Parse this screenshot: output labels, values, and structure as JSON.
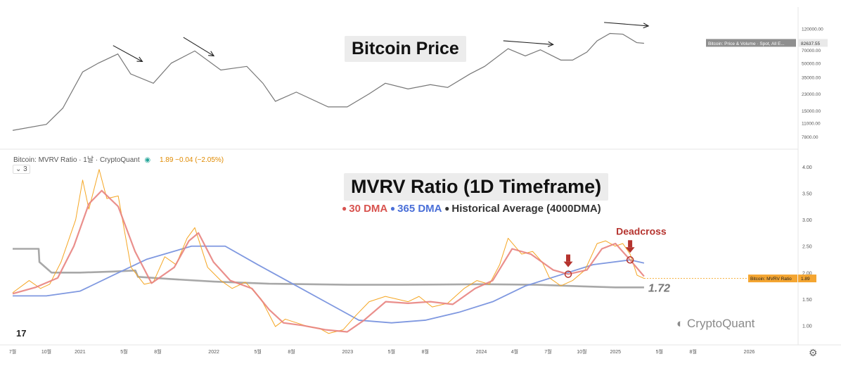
{
  "price_title": "Bitcoin Price",
  "mvrv_title": "MVRV Ratio (1D Timeframe)",
  "legend": [
    {
      "label": "30 DMA",
      "color": "#e0736f"
    },
    {
      "label": "365 DMA",
      "color": "#5b7fe0"
    },
    {
      "label": "Historical Average (4000DMA)",
      "color": "#444444"
    }
  ],
  "indicator": {
    "name": "Bitcoin: MVRV Ratio · 1날 · CryptoQuant",
    "value": "1.89  −0.04 (−2.05%)"
  },
  "collapse_label": "3",
  "deadcross_label": "Deadcross",
  "avg_value_label": "1.72",
  "price_tag": "Bitcoin: Price & Volume · Spot, All E...",
  "price_tag_value": "82637.55",
  "mvrv_tag": "Bitcoin: MVRV Ratio",
  "mvrv_tag_value": "1.89",
  "tv_logo": "17",
  "cq_logo": "CryptoQuant",
  "colors": {
    "mvrv": "#f5a623",
    "dma30": "#e8837f",
    "dma365": "#7f98e0",
    "hist": "#a8a8a8",
    "price": "#777777",
    "deadcross": "#b5332e",
    "tag": "#f4a531"
  },
  "chart_data": [
    {
      "type": "line",
      "title": "Bitcoin Price",
      "scale": "log",
      "x_range": [
        "2020-07-01",
        "2026-05-01"
      ],
      "y_ticks": [
        "120000.00",
        "70000.00",
        "50000.00",
        "35000.00",
        "23000.00",
        "15000.00",
        "11000.00",
        "7800.00"
      ],
      "last_value": 82637.55,
      "series": [
        {
          "name": "Bitcoin: Price & Volume · Spot, All E...",
          "x": [
            "2020-07-01",
            "2020-10-01",
            "2020-11-15",
            "2021-01-08",
            "2021-02-20",
            "2021-04-14",
            "2021-05-19",
            "2021-07-20",
            "2021-09-07",
            "2021-11-10",
            "2022-01-20",
            "2022-04-01",
            "2022-05-15",
            "2022-06-18",
            "2022-08-14",
            "2022-11-09",
            "2022-12-31",
            "2023-03-01",
            "2023-04-14",
            "2023-06-15",
            "2023-08-15",
            "2023-10-01",
            "2023-12-01",
            "2024-01-10",
            "2024-03-14",
            "2024-04-30",
            "2024-06-10",
            "2024-08-05",
            "2024-09-06",
            "2024-10-15",
            "2024-11-12",
            "2024-12-17",
            "2025-01-21",
            "2025-02-28",
            "2025-03-20"
          ],
          "values": [
            9100,
            10600,
            16000,
            40000,
            50000,
            63000,
            38000,
            30000,
            50000,
            68000,
            42000,
            46000,
            30000,
            19000,
            24000,
            16500,
            16500,
            23000,
            30000,
            26000,
            29000,
            27000,
            38000,
            46000,
            72000,
            60000,
            70000,
            54000,
            54000,
            66000,
            88000,
            106000,
            104000,
            84000,
            82600
          ]
        }
      ]
    },
    {
      "type": "line",
      "title": "MVRV Ratio (1D Timeframe)",
      "x_range": [
        "2020-07-01",
        "2026-05-01"
      ],
      "x_ticks": [
        "7월",
        "10월",
        "2021",
        "5월",
        "8월",
        "2022",
        "5월",
        "8월",
        "2023",
        "5월",
        "8월",
        "2024",
        "4월",
        "7월",
        "10월",
        "2025",
        "5월",
        "8월",
        "2026"
      ],
      "ylim": [
        0.7,
        4.2
      ],
      "y_ticks": [
        "4.00",
        "3.50",
        "3.00",
        "2.50",
        "2.00",
        "1.50",
        "1.00"
      ],
      "last_value": 1.89,
      "annotations": [
        {
          "text": "Deadcross",
          "x": "2025-02-10",
          "y": 2.24
        },
        {
          "text": "",
          "x": "2024-08-25",
          "y": 1.97
        },
        {
          "text": "1.72",
          "x": "2025-03-20",
          "y": 1.72
        }
      ],
      "series": [
        {
          "name": "Bitcoin: MVRV Ratio",
          "x": [
            "2020-07-01",
            "2020-08-15",
            "2020-09-15",
            "2020-10-10",
            "2020-11-10",
            "2020-12-20",
            "2021-01-08",
            "2021-01-25",
            "2021-02-22",
            "2021-03-15",
            "2021-04-15",
            "2021-05-20",
            "2021-06-25",
            "2021-07-20",
            "2021-08-20",
            "2021-09-20",
            "2021-10-20",
            "2021-11-10",
            "2021-12-15",
            "2022-01-20",
            "2022-02-20",
            "2022-03-28",
            "2022-05-10",
            "2022-06-18",
            "2022-07-15",
            "2022-08-15",
            "2022-09-15",
            "2022-10-15",
            "2022-11-10",
            "2022-12-20",
            "2023-01-25",
            "2023-03-01",
            "2023-04-14",
            "2023-06-15",
            "2023-07-15",
            "2023-08-20",
            "2023-10-01",
            "2023-11-15",
            "2023-12-20",
            "2024-01-23",
            "2024-02-20",
            "2024-03-14",
            "2024-04-20",
            "2024-05-20",
            "2024-06-15",
            "2024-07-05",
            "2024-08-05",
            "2024-09-06",
            "2024-10-10",
            "2024-11-12",
            "2024-12-05",
            "2024-12-31",
            "2025-01-21",
            "2025-02-10",
            "2025-03-01",
            "2025-03-20"
          ],
          "values": [
            1.62,
            1.85,
            1.7,
            1.78,
            2.2,
            3.0,
            3.75,
            3.2,
            3.95,
            3.4,
            3.45,
            2.1,
            1.78,
            1.82,
            2.3,
            2.15,
            2.65,
            2.85,
            2.1,
            1.85,
            1.7,
            1.82,
            1.5,
            0.98,
            1.12,
            1.05,
            0.98,
            0.95,
            0.85,
            0.92,
            1.2,
            1.45,
            1.55,
            1.45,
            1.55,
            1.35,
            1.42,
            1.7,
            1.85,
            1.78,
            2.15,
            2.65,
            2.35,
            2.4,
            2.2,
            1.9,
            1.75,
            1.85,
            2.05,
            2.55,
            2.6,
            2.5,
            2.55,
            2.35,
            1.95,
            1.89
          ]
        },
        {
          "name": "30 DMA",
          "x": [
            "2020-07-01",
            "2020-09-01",
            "2020-11-01",
            "2020-12-15",
            "2021-01-25",
            "2021-03-01",
            "2021-04-15",
            "2021-05-31",
            "2021-07-15",
            "2021-09-15",
            "2021-10-25",
            "2021-11-20",
            "2021-12-31",
            "2022-02-15",
            "2022-04-15",
            "2022-06-01",
            "2022-07-10",
            "2022-09-01",
            "2022-11-01",
            "2022-12-31",
            "2023-02-15",
            "2023-04-15",
            "2023-06-15",
            "2023-08-15",
            "2023-10-15",
            "2023-12-15",
            "2024-02-01",
            "2024-03-25",
            "2024-05-15",
            "2024-07-15",
            "2024-08-25",
            "2024-10-15",
            "2024-11-25",
            "2025-01-01",
            "2025-02-10",
            "2025-03-20"
          ],
          "values": [
            1.6,
            1.72,
            1.9,
            2.5,
            3.3,
            3.55,
            3.25,
            2.4,
            1.8,
            2.1,
            2.6,
            2.75,
            2.2,
            1.85,
            1.7,
            1.3,
            1.05,
            1.0,
            0.92,
            0.88,
            1.1,
            1.45,
            1.42,
            1.45,
            1.4,
            1.7,
            1.85,
            2.45,
            2.35,
            2.05,
            1.97,
            2.05,
            2.45,
            2.55,
            2.24,
            1.93
          ]
        },
        {
          "name": "365 DMA",
          "x": [
            "2020-07-01",
            "2020-10-01",
            "2021-01-01",
            "2021-04-01",
            "2021-07-01",
            "2021-11-01",
            "2022-02-01",
            "2022-05-01",
            "2022-08-01",
            "2022-11-01",
            "2023-02-01",
            "2023-05-01",
            "2023-08-01",
            "2023-11-01",
            "2024-02-01",
            "2024-05-01",
            "2024-08-01",
            "2024-11-01",
            "2025-02-10",
            "2025-03-20"
          ],
          "values": [
            1.56,
            1.56,
            1.65,
            1.95,
            2.25,
            2.5,
            2.5,
            2.15,
            1.8,
            1.45,
            1.1,
            1.05,
            1.1,
            1.25,
            1.45,
            1.75,
            1.95,
            2.15,
            2.24,
            2.18
          ]
        },
        {
          "name": "Historical Average (4000DMA)",
          "x": [
            "2020-07-01",
            "2020-09-10",
            "2020-09-12",
            "2020-10-15",
            "2021-01-01",
            "2021-04-01",
            "2021-06-01",
            "2021-06-08",
            "2021-09-01",
            "2022-01-01",
            "2022-06-01",
            "2023-01-01",
            "2023-06-01",
            "2024-01-01",
            "2024-06-01",
            "2024-10-01",
            "2025-01-01",
            "2025-03-20"
          ],
          "values": [
            2.45,
            2.45,
            2.2,
            2.0,
            2.0,
            2.02,
            2.04,
            1.92,
            1.88,
            1.83,
            1.79,
            1.77,
            1.77,
            1.78,
            1.77,
            1.74,
            1.72,
            1.72
          ]
        }
      ]
    }
  ]
}
